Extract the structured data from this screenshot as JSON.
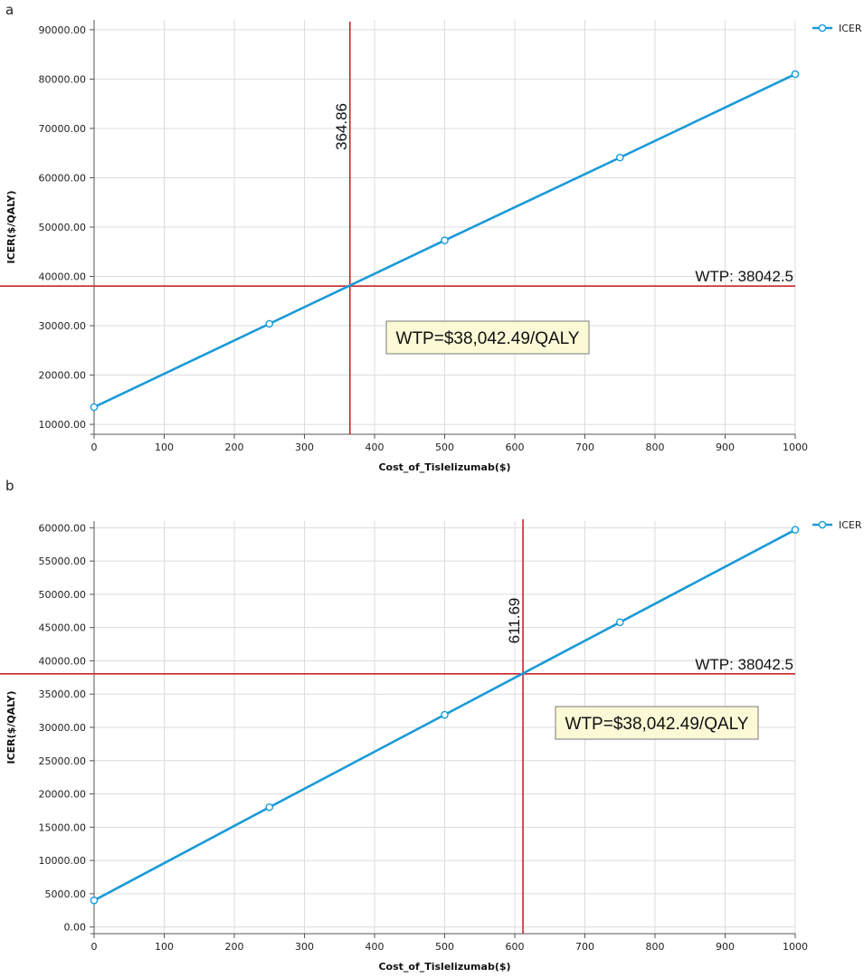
{
  "chart_data": [
    {
      "panel": "a",
      "type": "line",
      "xlabel": "Cost_of_Tislelizumab($)",
      "ylabel": "ICER($/QALY)",
      "xlim": [
        0,
        1000
      ],
      "ylim": [
        8000,
        92000
      ],
      "x_ticks": [
        0,
        100,
        200,
        300,
        400,
        500,
        600,
        700,
        800,
        900,
        1000
      ],
      "y_ticks": [
        10000,
        20000,
        30000,
        40000,
        50000,
        60000,
        70000,
        80000,
        90000
      ],
      "grid": true,
      "legend": "top-right",
      "series": [
        {
          "name": "ICER",
          "color": "#1a9ad8",
          "x": [
            0,
            250,
            500,
            750,
            1000
          ],
          "y": [
            13500,
            30400,
            47300,
            64100,
            81000
          ]
        }
      ],
      "wtp_line": {
        "value": 38042.5,
        "label": "WTP: 38042.5",
        "color": "#c8252b"
      },
      "threshold_line": {
        "value": 364.86,
        "label": "364.86",
        "color": "#c8252b"
      },
      "callout": {
        "text": "WTP=$38,042.49/QALY"
      }
    },
    {
      "panel": "b",
      "type": "line",
      "xlabel": "Cost_of_Tislelizumab($)",
      "ylabel": "ICER($/QALY)",
      "xlim": [
        0,
        1000
      ],
      "ylim": [
        -1000,
        61000
      ],
      "x_ticks": [
        0,
        100,
        200,
        300,
        400,
        500,
        600,
        700,
        800,
        900,
        1000
      ],
      "y_ticks": [
        0,
        5000,
        10000,
        15000,
        20000,
        25000,
        30000,
        35000,
        40000,
        45000,
        50000,
        55000,
        60000
      ],
      "grid": true,
      "legend": "top-right",
      "series": [
        {
          "name": "ICER",
          "color": "#1a9ad8",
          "x": [
            0,
            250,
            500,
            750,
            1000
          ],
          "y": [
            4000,
            18000,
            31900,
            45800,
            59700
          ]
        }
      ],
      "wtp_line": {
        "value": 38042.5,
        "label": "WTP: 38042.5",
        "color": "#c8252b"
      },
      "threshold_line": {
        "value": 611.69,
        "label": "611.69",
        "color": "#c8252b"
      },
      "callout": {
        "text": "WTP=$38,042.49/QALY"
      }
    }
  ]
}
